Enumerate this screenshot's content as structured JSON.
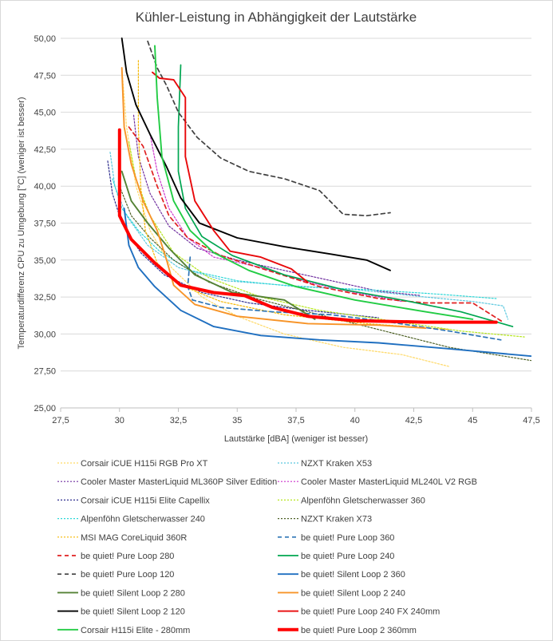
{
  "chart_data": {
    "type": "line",
    "title": "Kühler-Leistung in Abhängigkeit der Lautstärke",
    "xlabel": "Lautstärke [dBA] (weniger ist besser)",
    "ylabel": "Temperaturdifferenz CPU zu Umgebung [°C] (weniger ist besser)",
    "xlim": [
      27.5,
      47.5
    ],
    "ylim": [
      25,
      50
    ],
    "x_ticks": [
      "27,5",
      "30",
      "32,5",
      "35",
      "37,5",
      "40",
      "42,5",
      "45",
      "47,5"
    ],
    "y_ticks": [
      "25,00",
      "27,50",
      "30,00",
      "32,50",
      "35,00",
      "37,50",
      "40,00",
      "42,50",
      "45,00",
      "47,50",
      "50,00"
    ],
    "grid": "horizontal",
    "legend_position": "bottom",
    "series": [
      {
        "name": "Corsair iCUE H115i RGB Pro XT",
        "color": "#ffd966",
        "dash": "dotted",
        "width": 1.2,
        "points": [
          [
            30.1,
            48
          ],
          [
            30.3,
            44
          ],
          [
            30.7,
            40
          ],
          [
            31.3,
            37
          ],
          [
            32.2,
            34.5
          ],
          [
            33.5,
            32.5
          ],
          [
            35,
            31.2
          ],
          [
            37,
            30
          ],
          [
            39.5,
            29.1
          ],
          [
            42,
            28.6
          ],
          [
            44,
            27.8
          ]
        ]
      },
      {
        "name": "NZXT Kraken X53",
        "color": "#5bc8df",
        "dash": "dotted",
        "width": 1.2,
        "points": [
          [
            29.6,
            42.3
          ],
          [
            29.8,
            40
          ],
          [
            30.3,
            38
          ],
          [
            31.2,
            36
          ],
          [
            32.5,
            34.5
          ],
          [
            34.5,
            33.6
          ],
          [
            37,
            33.3
          ],
          [
            40,
            33
          ],
          [
            43,
            32.5
          ],
          [
            45,
            32.2
          ],
          [
            46.3,
            31.9
          ],
          [
            46.5,
            31
          ]
        ]
      },
      {
        "name": "Cooler Master MasterLiquid ML360P Silver Edition",
        "color": "#7030a0",
        "dash": "dotted",
        "width": 1.2,
        "points": [
          [
            30.6,
            44.8
          ],
          [
            30.8,
            42
          ],
          [
            31.3,
            39.5
          ],
          [
            32.1,
            37.3
          ],
          [
            33.3,
            35.8
          ],
          [
            35,
            35
          ],
          [
            37,
            34.3
          ],
          [
            39,
            33.6
          ],
          [
            41,
            32.9
          ],
          [
            42.8,
            32.6
          ]
        ]
      },
      {
        "name": "Cooler Master MasterLiquid ML240L V2 RGB",
        "color": "#cc33cc",
        "dash": "dotted",
        "width": 1.2,
        "points": [
          [
            31.3,
            43.5
          ],
          [
            31.6,
            41
          ],
          [
            32.1,
            38.5
          ],
          [
            32.9,
            36.5
          ],
          [
            34,
            35.2
          ],
          [
            36,
            34.5
          ],
          [
            38,
            33.5
          ],
          [
            40,
            32.8
          ],
          [
            42,
            32.2
          ]
        ]
      },
      {
        "name": "Corsair iCUE H115i Elite Capellix",
        "color": "#2f2f8f",
        "dash": "dotted",
        "width": 1.2,
        "points": [
          [
            29.5,
            41.7
          ],
          [
            29.7,
            39.5
          ],
          [
            30.1,
            37.5
          ],
          [
            30.9,
            35.5
          ],
          [
            31.9,
            34
          ],
          [
            33.5,
            32.8
          ],
          [
            35.5,
            32.1
          ],
          [
            38,
            31.6
          ],
          [
            41,
            31.1
          ]
        ]
      },
      {
        "name": "Alpenföhn Gletscherwasser 360",
        "color": "#b5e61d",
        "dash": "dotted",
        "width": 1.2,
        "points": [
          [
            30.4,
            43
          ],
          [
            30.7,
            40.5
          ],
          [
            31.3,
            38
          ],
          [
            32.3,
            35.5
          ],
          [
            33.8,
            33.8
          ],
          [
            36,
            32.5
          ],
          [
            38.5,
            31.6
          ],
          [
            41.5,
            30.9
          ],
          [
            44.5,
            30.2
          ],
          [
            47.2,
            29.8
          ]
        ]
      },
      {
        "name": "Alpenföhn Gletscherwasser 240",
        "color": "#2fd8d8",
        "dash": "dotted",
        "width": 1.2,
        "points": [
          [
            29.7,
            40.5
          ],
          [
            30.1,
            38.5
          ],
          [
            30.8,
            37
          ],
          [
            31.7,
            35.6
          ],
          [
            33,
            34.3
          ],
          [
            35,
            33.6
          ],
          [
            37.5,
            33.2
          ],
          [
            40.5,
            33
          ],
          [
            43.5,
            32.7
          ],
          [
            46,
            32.4
          ]
        ]
      },
      {
        "name": "NZXT Kraken X73",
        "color": "#4f6228",
        "dash": "dotted",
        "width": 1.2,
        "points": [
          [
            30,
            40
          ],
          [
            30.5,
            38
          ],
          [
            31.3,
            36.5
          ],
          [
            32.3,
            35
          ],
          [
            33.8,
            33.5
          ],
          [
            35.8,
            32.4
          ],
          [
            38,
            31.5
          ],
          [
            41,
            30.3
          ],
          [
            44,
            29.1
          ],
          [
            47.5,
            28.2
          ]
        ]
      },
      {
        "name": "MSI MAG CoreLiquid 360R",
        "color": "#f5b700",
        "dash": "dotted",
        "width": 1.2,
        "points": [
          [
            30.8,
            48.5
          ],
          [
            30.8,
            44
          ],
          [
            30.9,
            40
          ],
          [
            31.1,
            37
          ],
          [
            31.6,
            34.8
          ],
          [
            32.6,
            33.3
          ],
          [
            34.3,
            32.2
          ],
          [
            37,
            31.3
          ],
          [
            40.5,
            30.7
          ],
          [
            44,
            30.3
          ]
        ]
      },
      {
        "name": "be quiet! Pure Loop 360",
        "color": "#2e75b6",
        "dash": "dashed",
        "width": 1.7,
        "points": [
          [
            33,
            35.2
          ],
          [
            32.9,
            33.2
          ],
          [
            33.1,
            32.3
          ],
          [
            34.3,
            31.8
          ],
          [
            36.5,
            31.5
          ],
          [
            39,
            31.3
          ],
          [
            41.5,
            30.8
          ],
          [
            44,
            30.2
          ],
          [
            46.2,
            29.6
          ]
        ]
      },
      {
        "name": "be quiet! Pure Loop 280",
        "color": "#e02020",
        "dash": "dashed",
        "width": 1.7,
        "points": [
          [
            30.4,
            44
          ],
          [
            31,
            42.7
          ],
          [
            31.6,
            40
          ],
          [
            32.1,
            38
          ],
          [
            32.9,
            36.5
          ],
          [
            34.3,
            35.3
          ],
          [
            36.5,
            34.2
          ],
          [
            38.5,
            33.2
          ],
          [
            41,
            32.4
          ],
          [
            43,
            32.1
          ],
          [
            45,
            32.1
          ],
          [
            46.3,
            30.8
          ]
        ]
      },
      {
        "name": "be quiet! Pure Loop 240",
        "color": "#00a651",
        "dash": "solid",
        "width": 1.7,
        "points": [
          [
            32.6,
            48.2
          ],
          [
            32.5,
            44
          ],
          [
            32.5,
            41
          ],
          [
            32.8,
            38.5
          ],
          [
            33.5,
            36.6
          ],
          [
            34.8,
            35.3
          ],
          [
            37,
            34
          ],
          [
            39.5,
            33
          ],
          [
            42,
            32.3
          ],
          [
            44.5,
            31.5
          ],
          [
            46.7,
            30.5
          ]
        ]
      },
      {
        "name": "be quiet! Pure Loop 120",
        "color": "#404040",
        "dash": "dashed",
        "width": 1.7,
        "points": [
          [
            31.2,
            49.8
          ],
          [
            31.6,
            48
          ],
          [
            32,
            46.8
          ],
          [
            32.5,
            45
          ],
          [
            33.3,
            43.3
          ],
          [
            34.3,
            41.9
          ],
          [
            35.5,
            41
          ],
          [
            37,
            40.5
          ],
          [
            38.5,
            39.7
          ],
          [
            39.5,
            38.1
          ],
          [
            40.5,
            38
          ],
          [
            41.5,
            38.2
          ]
        ]
      },
      {
        "name": "be quiet! Silent Loop 2 360",
        "color": "#1f6fc0",
        "dash": "solid",
        "width": 1.9,
        "points": [
          [
            30.2,
            38.5
          ],
          [
            30.4,
            36
          ],
          [
            30.8,
            34.5
          ],
          [
            31.5,
            33.2
          ],
          [
            32.6,
            31.6
          ],
          [
            34,
            30.5
          ],
          [
            36,
            29.9
          ],
          [
            38.5,
            29.6
          ],
          [
            41,
            29.4
          ],
          [
            44,
            29
          ],
          [
            47.5,
            28.5
          ]
        ]
      },
      {
        "name": "be quiet! Silent Loop 2 280",
        "color": "#548235",
        "dash": "solid",
        "width": 1.9,
        "points": [
          [
            30.1,
            41
          ],
          [
            30.5,
            39
          ],
          [
            31.2,
            37.5
          ],
          [
            32.1,
            35.8
          ],
          [
            33.2,
            34
          ],
          [
            34.8,
            32.8
          ],
          [
            37,
            32.3
          ],
          [
            38.3,
            31
          ]
        ]
      },
      {
        "name": "be quiet! Silent Loop 2 240",
        "color": "#f79428",
        "dash": "solid",
        "width": 1.9,
        "points": [
          [
            30.1,
            48
          ],
          [
            30.2,
            44
          ],
          [
            30.5,
            41.5
          ],
          [
            31,
            39
          ],
          [
            31.6,
            37
          ],
          [
            32,
            35
          ],
          [
            32.3,
            33.3
          ],
          [
            33.2,
            32
          ],
          [
            35,
            31.2
          ],
          [
            38,
            30.7
          ],
          [
            41,
            30.6
          ],
          [
            43,
            30.4
          ]
        ]
      },
      {
        "name": "be quiet! Silent Loop 2 120",
        "color": "#000000",
        "dash": "solid",
        "width": 1.9,
        "points": [
          [
            30.1,
            50
          ],
          [
            30.3,
            47.7
          ],
          [
            30.7,
            45.5
          ],
          [
            31.3,
            43.5
          ],
          [
            32,
            41.3
          ],
          [
            32.6,
            39.2
          ],
          [
            33.4,
            37.5
          ],
          [
            35,
            36.5
          ],
          [
            37,
            35.9
          ],
          [
            39,
            35.4
          ],
          [
            40.5,
            35
          ],
          [
            41.5,
            34.3
          ]
        ]
      },
      {
        "name": "be quiet! Pure Loop 240 FX 240mm",
        "color": "#e8080a",
        "dash": "solid",
        "width": 1.9,
        "points": [
          [
            31.4,
            47.7
          ],
          [
            31.7,
            47.3
          ],
          [
            32.3,
            47.2
          ],
          [
            32.8,
            46
          ],
          [
            32.8,
            42
          ],
          [
            33.2,
            39
          ],
          [
            34,
            37
          ],
          [
            34.7,
            35.6
          ],
          [
            36,
            35.2
          ],
          [
            37.3,
            34.4
          ],
          [
            38,
            33.5
          ]
        ]
      },
      {
        "name": "Corsair H115i Elite - 280mm",
        "color": "#22cc44",
        "dash": "solid",
        "width": 1.9,
        "points": [
          [
            31.5,
            49.5
          ],
          [
            31.6,
            46
          ],
          [
            31.8,
            42
          ],
          [
            32.3,
            39
          ],
          [
            33,
            37
          ],
          [
            34,
            35.5
          ],
          [
            35.5,
            34.3
          ],
          [
            37.5,
            33.2
          ],
          [
            40,
            32.3
          ],
          [
            43,
            31.5
          ],
          [
            45,
            31
          ]
        ]
      },
      {
        "name": "be quiet! Pure Loop 2 360mm",
        "color": "#ff0000",
        "dash": "solid",
        "width": 4,
        "points": [
          [
            30,
            43.8
          ],
          [
            30,
            38
          ],
          [
            30.5,
            36.4
          ],
          [
            31.5,
            34.8
          ],
          [
            32.6,
            33.3
          ],
          [
            34,
            32.8
          ],
          [
            35.3,
            32.6
          ],
          [
            36.5,
            31.8
          ],
          [
            38,
            31.2
          ],
          [
            40,
            30.9
          ],
          [
            43,
            30.8
          ],
          [
            46,
            30.8
          ]
        ]
      }
    ]
  }
}
